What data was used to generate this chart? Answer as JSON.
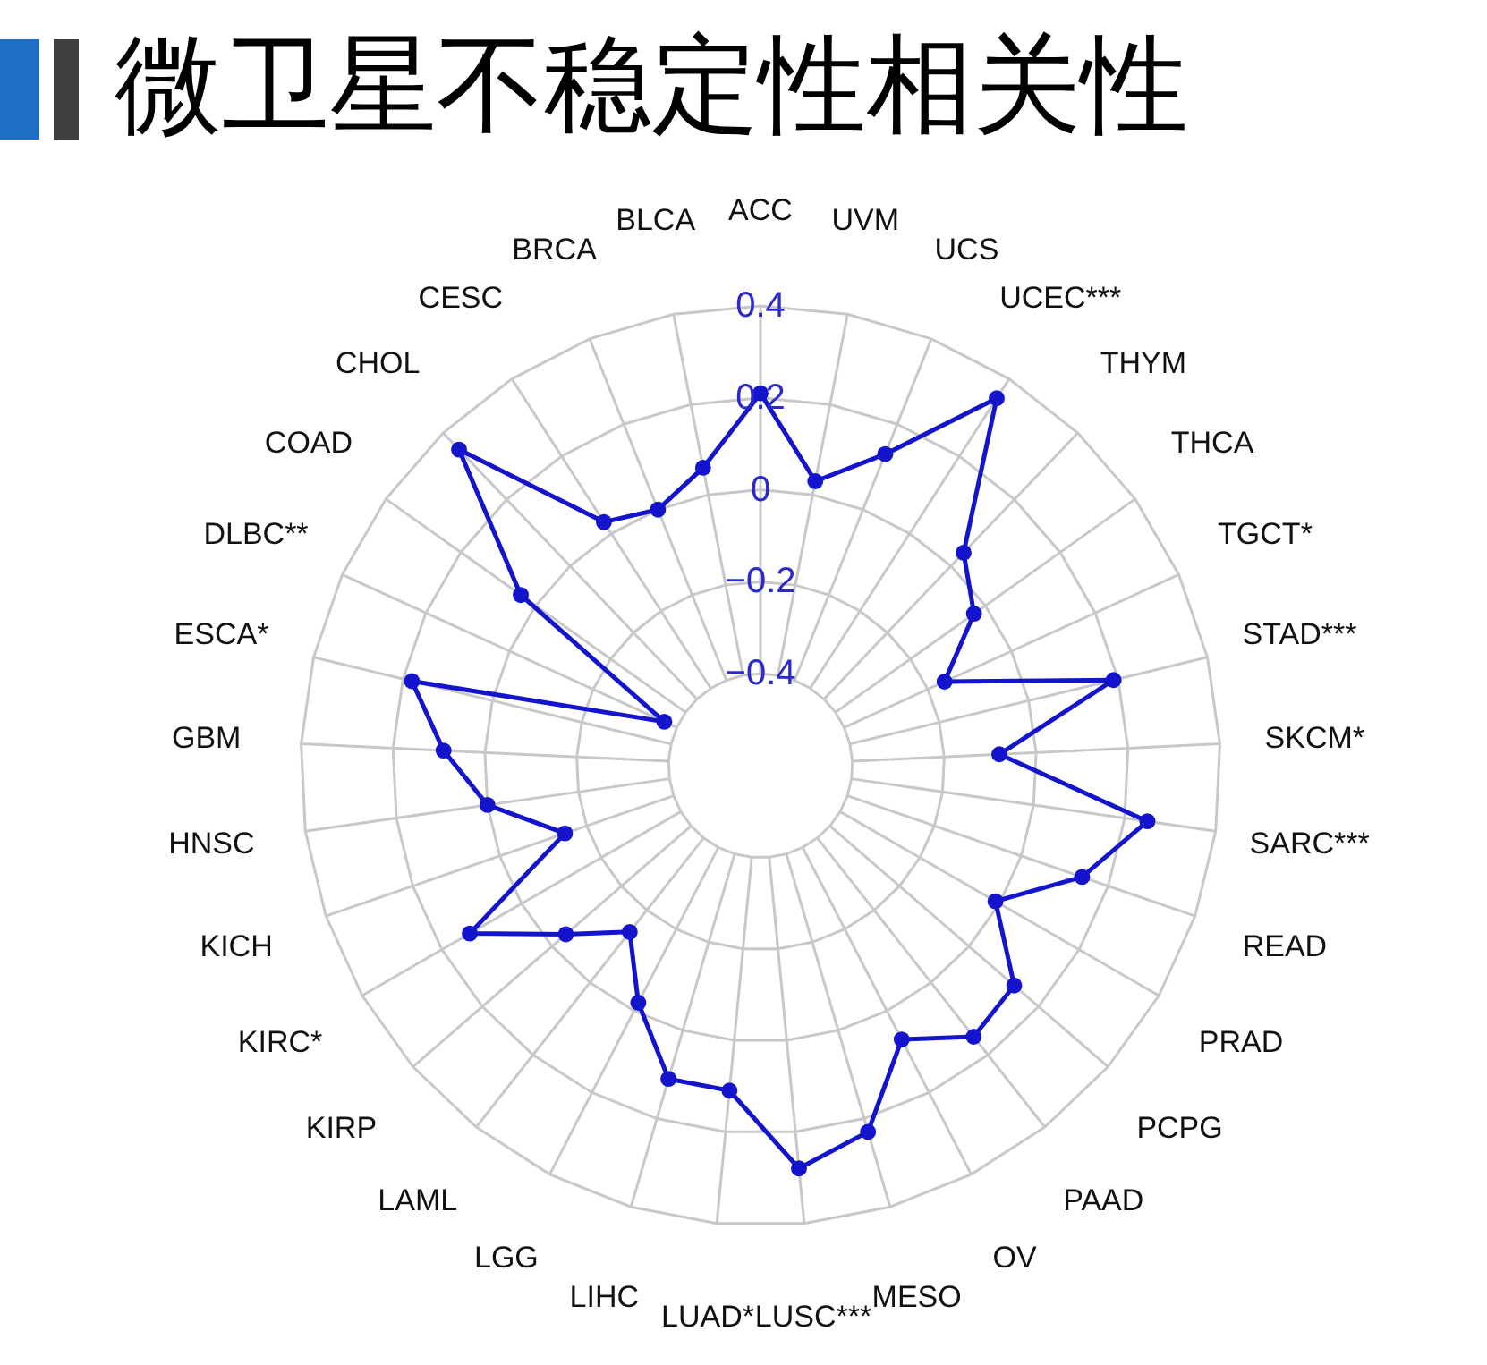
{
  "chart_data": {
    "type": "radar",
    "title": "微卫星不稳定性相关性",
    "categories": [
      "ACC",
      "UVM",
      "UCS",
      "UCEC***",
      "THYM",
      "THCA",
      "TGCT*",
      "STAD***",
      "SKCM*",
      "SARC***",
      "READ",
      "PRAD",
      "PCPG",
      "PAAD",
      "OV",
      "MESO",
      "LUSC***",
      "LUAD*",
      "LIHC",
      "LGG",
      "LAML",
      "KIRP",
      "KIRC*",
      "KICH",
      "HNSC",
      "GBM",
      "ESCA*",
      "DLBC**",
      "COAD",
      "CHOL",
      "CESC",
      "BRCA",
      "BLCA"
    ],
    "series": [
      {
        "color": "#1414cc",
        "values": [
          0.21,
          0.03,
          0.13,
          0.35,
          0.04,
          -0.03,
          -0.16,
          0.19,
          -0.08,
          0.25,
          0.14,
          -0.01,
          0.13,
          0.15,
          0.07,
          0.23,
          0.28,
          0.11,
          0.11,
          -0.02,
          -0.14,
          -0.04,
          0.13,
          -0.15,
          0.0,
          0.09,
          0.18,
          -0.37,
          0.04,
          0.35,
          0.03,
          0.0,
          0.06
        ]
      }
    ],
    "ylim": [
      -0.6,
      0.4
    ],
    "yticks": [
      -0.4,
      -0.2,
      0,
      0.2,
      0.4
    ],
    "grid": true,
    "marker": "circle",
    "line_style": "solid"
  }
}
